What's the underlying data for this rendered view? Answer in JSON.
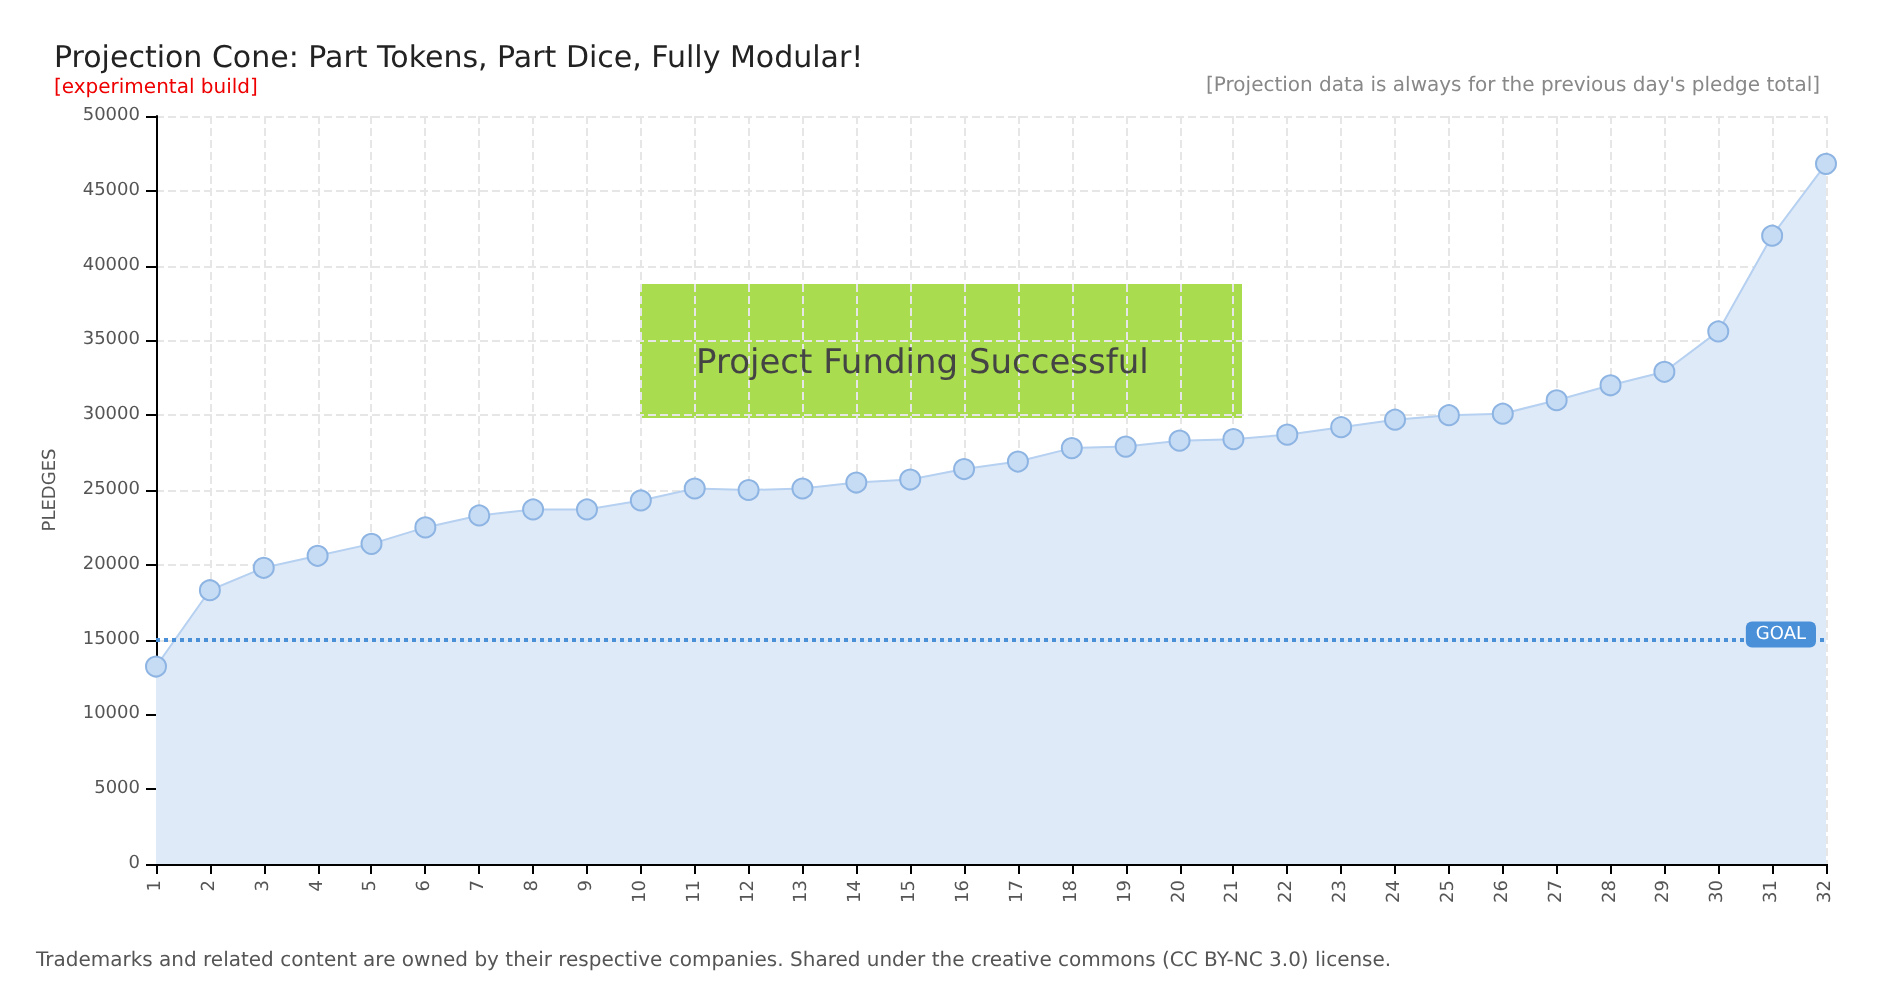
{
  "chart_data": {
    "type": "area",
    "title": "Projection Cone: Part Tokens, Part Dice, Fully Modular!",
    "subtitle": "[experimental build]",
    "ylabel": "PLEDGES",
    "categories": [
      "1",
      "2",
      "3",
      "4",
      "5",
      "6",
      "7",
      "8",
      "9",
      "10",
      "11",
      "12",
      "13",
      "14",
      "15",
      "16",
      "17",
      "18",
      "19",
      "20",
      "21",
      "22",
      "23",
      "24",
      "25",
      "26",
      "27",
      "28",
      "29",
      "30",
      "31",
      "32"
    ],
    "series": [
      {
        "color": "#b5d0f0",
        "values": [
          13200,
          18300,
          19800,
          20600,
          21400,
          22500,
          23300,
          23700,
          23700,
          24300,
          25100,
          25000,
          25100,
          25500,
          25700,
          26400,
          26900,
          27800,
          27900,
          28300,
          28400,
          28700,
          29200,
          29700,
          30000,
          30100,
          31000,
          32000,
          32900,
          35600,
          42000,
          46800
        ]
      }
    ],
    "ylim": [
      0,
      50000
    ],
    "yticks": [
      0,
      5000,
      10000,
      15000,
      20000,
      25000,
      30000,
      35000,
      40000,
      45000,
      50000
    ],
    "ref_lines": [
      {
        "axis": "y",
        "value": 15000,
        "label": "GOAL",
        "color": "#4a90d9",
        "line_style": "dotted"
      }
    ],
    "annotations": [
      "[Projection data is always for the previous day's pledge total]",
      "Project Funding Successful",
      "Trademarks and related content are owned by their respective companies. Shared under the creative commons (CC BY-NC 3.0) license."
    ],
    "grid": true,
    "marker": "circle"
  }
}
